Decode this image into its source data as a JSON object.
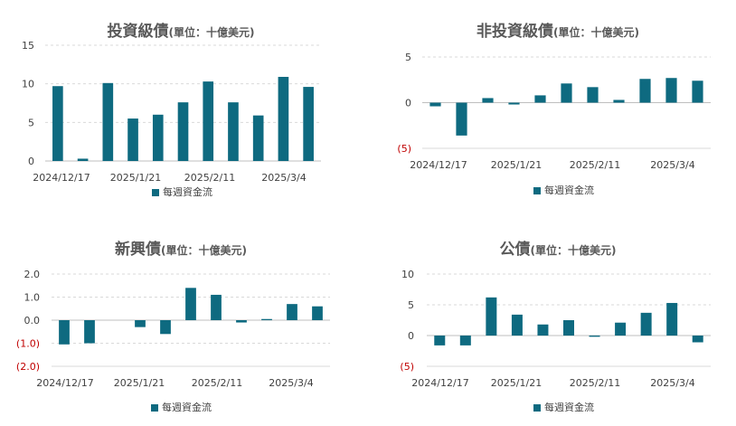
{
  "colors": {
    "bar": "#0e6a80",
    "grid": "#d9d9d9",
    "negative_label": "#c00000",
    "text": "#595959"
  },
  "chart_data": [
    {
      "id": "ig",
      "type": "bar",
      "title": "投資級債",
      "subtitle": "(單位：十億美元)",
      "legend": "每週資金流",
      "ylim": [
        0,
        15
      ],
      "yticks": [
        0,
        5,
        10,
        15
      ],
      "ytick_labels": [
        "0",
        "5",
        "10",
        "15"
      ],
      "x_labels": [
        "2024/12/17",
        "2025/1/21",
        "2025/2/11",
        "2025/3/4"
      ],
      "values": [
        9.7,
        0.3,
        10.1,
        5.5,
        6.0,
        7.6,
        10.3,
        7.6,
        5.9,
        10.9,
        9.6
      ],
      "grid": true,
      "legend_position": "bottom"
    },
    {
      "id": "hy",
      "type": "bar",
      "title": "非投資級債",
      "subtitle": "(單位：十億美元)",
      "legend": "每週資金流",
      "ylim": [
        -5,
        5
      ],
      "yticks": [
        -5,
        0,
        5
      ],
      "ytick_labels": [
        "(5)",
        "0",
        "5"
      ],
      "x_labels": [
        "2024/12/17",
        "2025/1/21",
        "2025/2/11",
        "2025/3/4"
      ],
      "values": [
        -0.4,
        -3.6,
        0.5,
        -0.2,
        0.8,
        2.1,
        1.7,
        0.3,
        2.6,
        2.7,
        2.4
      ],
      "grid": true,
      "legend_position": "bottom"
    },
    {
      "id": "em",
      "type": "bar",
      "title": "新興債",
      "subtitle": "(單位：十億美元)",
      "legend": "每週資金流",
      "ylim": [
        -2,
        2
      ],
      "yticks": [
        -2,
        -1,
        0,
        1,
        2
      ],
      "ytick_labels": [
        "(2.0)",
        "(1.0)",
        "0.0",
        "1.0",
        "2.0"
      ],
      "x_labels": [
        "2024/12/17",
        "2025/1/21",
        "2025/2/11",
        "2025/3/4"
      ],
      "values": [
        -1.05,
        -1.0,
        0.0,
        -0.3,
        -0.6,
        1.4,
        1.1,
        -0.1,
        0.05,
        0.7,
        0.6
      ],
      "grid": true,
      "legend_position": "bottom"
    },
    {
      "id": "gov",
      "type": "bar",
      "title": "公債",
      "subtitle": "(單位：十億美元)",
      "legend": "每週資金流",
      "ylim": [
        -5,
        10
      ],
      "yticks": [
        -5,
        0,
        5,
        10
      ],
      "ytick_labels": [
        "(5)",
        "0",
        "5",
        "10"
      ],
      "x_labels": [
        "2024/12/17",
        "2025/1/21",
        "2025/2/11",
        "2025/3/4"
      ],
      "values": [
        -1.6,
        -1.6,
        6.2,
        3.4,
        1.8,
        2.5,
        -0.2,
        2.1,
        3.7,
        5.3,
        -1.1
      ],
      "grid": true,
      "legend_position": "bottom"
    }
  ]
}
